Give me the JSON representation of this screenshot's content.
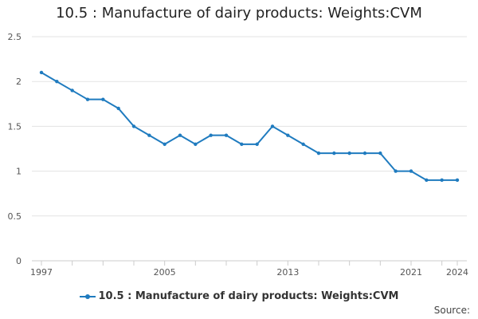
{
  "chart_data": {
    "type": "line",
    "title": "10.5 : Manufacture of dairy products: Weights:CVM",
    "x": [
      1997,
      1998,
      1999,
      2000,
      2001,
      2002,
      2003,
      2004,
      2005,
      2006,
      2007,
      2008,
      2009,
      2010,
      2011,
      2012,
      2013,
      2014,
      2015,
      2016,
      2017,
      2018,
      2019,
      2020,
      2021,
      2022,
      2023,
      2024
    ],
    "x_tick_labels": [
      "1997",
      "2005",
      "2013",
      "2021",
      "2024"
    ],
    "x_tick_values": [
      1997,
      2005,
      2013,
      2021,
      2024
    ],
    "y_tick_labels": [
      "0",
      "0.5",
      "1",
      "1.5",
      "2",
      "2.5"
    ],
    "ylim": [
      0,
      2.5
    ],
    "grid": true,
    "legend_position": "bottom",
    "series": [
      {
        "name": "10.5 : Manufacture of dairy products: Weights:CVM",
        "color": "#1f7bbf",
        "values": [
          2.1,
          2.0,
          1.9,
          1.8,
          1.8,
          1.7,
          1.5,
          1.4,
          1.3,
          1.4,
          1.3,
          1.4,
          1.4,
          1.3,
          1.3,
          1.5,
          1.4,
          1.3,
          1.2,
          1.2,
          1.2,
          1.2,
          1.2,
          1.0,
          1.0,
          0.9,
          0.9,
          0.9
        ]
      }
    ]
  },
  "source_label": "Source:"
}
